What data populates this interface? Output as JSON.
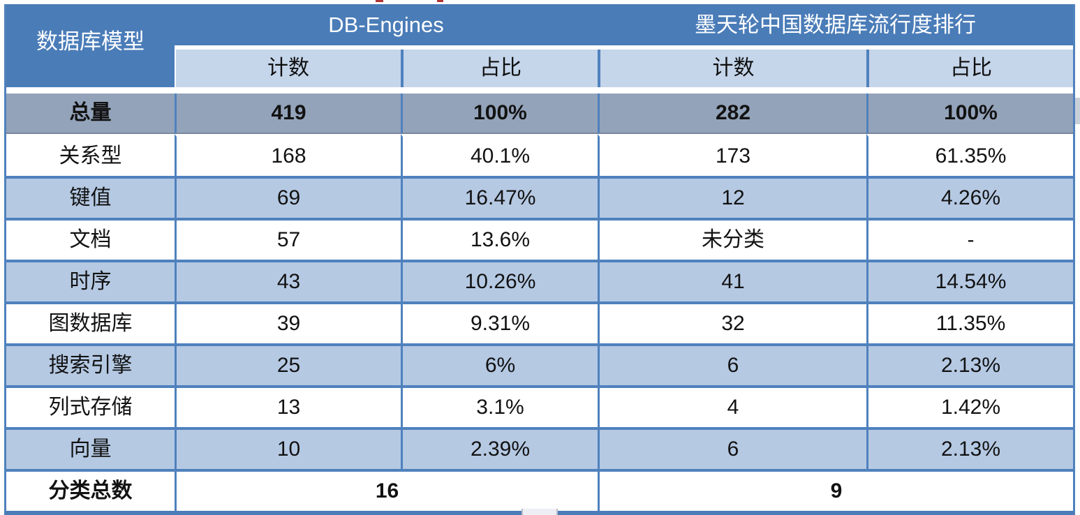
{
  "chart_data": {
    "type": "table",
    "corner_header": "数据库模型",
    "groups": [
      {
        "label": "DB-Engines",
        "subheaders": [
          "计数",
          "占比"
        ]
      },
      {
        "label": "墨天轮中国数据库流行度排行",
        "subheaders": [
          "计数",
          "占比"
        ]
      }
    ],
    "rows": [
      {
        "label": "总量",
        "values": [
          "419",
          "100%",
          "282",
          "100%"
        ],
        "emphasis": "total"
      },
      {
        "label": "关系型",
        "values": [
          "168",
          "40.1%",
          "173",
          "61.35%"
        ]
      },
      {
        "label": "键值",
        "values": [
          "69",
          "16.47%",
          "12",
          "4.26%"
        ]
      },
      {
        "label": "文档",
        "values": [
          "57",
          "13.6%",
          "未分类",
          "-"
        ]
      },
      {
        "label": "时序",
        "values": [
          "43",
          "10.26%",
          "41",
          "14.54%"
        ]
      },
      {
        "label": "图数据库",
        "values": [
          "39",
          "9.31%",
          "32",
          "11.35%"
        ]
      },
      {
        "label": "搜索引擎",
        "values": [
          "25",
          "6%",
          "6",
          "2.13%"
        ]
      },
      {
        "label": "列式存储",
        "values": [
          "13",
          "3.1%",
          "4",
          "1.42%"
        ]
      },
      {
        "label": "向量",
        "values": [
          "10",
          "2.39%",
          "6",
          "2.13%"
        ]
      }
    ],
    "footer": {
      "label": "分类总数",
      "values": [
        "16",
        "9"
      ]
    },
    "colors": {
      "header_blue": "#4A7CB8",
      "subheader_blue": "#C5D5EA",
      "row_alt_blue": "#B5C9E3",
      "total_gray": "#93A3BA",
      "border_blue": "#4F81BD",
      "header_text": "#FFFFFF",
      "body_text": "#121212"
    }
  }
}
